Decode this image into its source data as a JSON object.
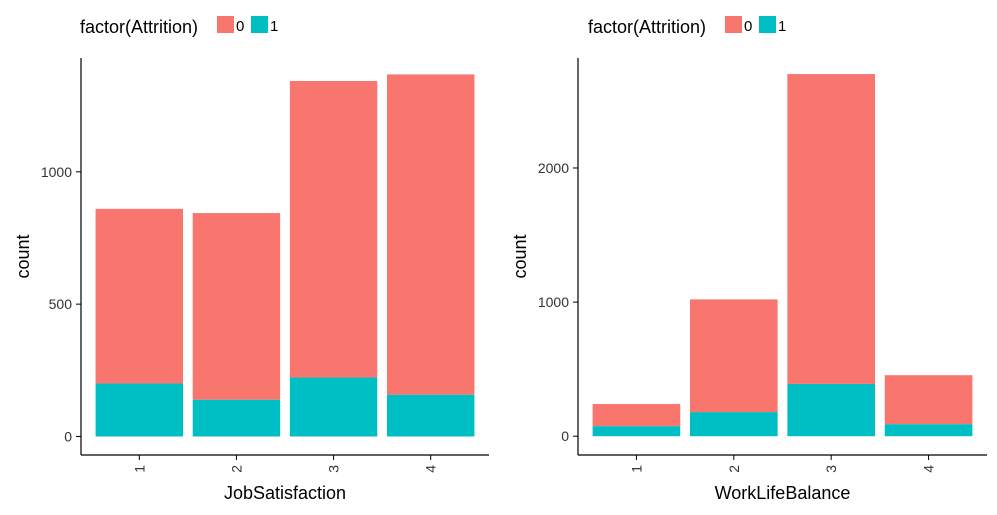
{
  "colors": {
    "series_0": "#F8766D",
    "series_1": "#00BFC4",
    "axis": "#000000"
  },
  "chart_data": [
    {
      "type": "bar",
      "stacked": true,
      "legend": {
        "title": "factor(Attrition)",
        "position": "top-left",
        "entries": [
          "0",
          "1"
        ]
      },
      "xlabel": "JobSatisfaction",
      "ylabel": "count",
      "categories": [
        "1",
        "2",
        "3",
        "4"
      ],
      "series": [
        {
          "name": "0",
          "values": [
            660,
            705,
            1120,
            1210
          ]
        },
        {
          "name": "1",
          "values": [
            200,
            139,
            223,
            158
          ]
        }
      ],
      "yticks": [
        0,
        500,
        1000
      ],
      "ytick_labels": [
        "0",
        "500",
        "1000"
      ],
      "ylim": [
        -70,
        1430
      ],
      "grid": false
    },
    {
      "type": "bar",
      "stacked": true,
      "legend": {
        "title": "factor(Attrition)",
        "position": "top-left",
        "entries": [
          "0",
          "1"
        ]
      },
      "xlabel": "WorkLifeBalance",
      "ylabel": "count",
      "categories": [
        "1",
        "2",
        "3",
        "4"
      ],
      "series": [
        {
          "name": "0",
          "values": [
            165,
            840,
            2310,
            365
          ]
        },
        {
          "name": "1",
          "values": [
            75,
            180,
            390,
            90
          ]
        }
      ],
      "yticks": [
        0,
        1000,
        2000
      ],
      "ytick_labels": [
        "0",
        "1000",
        "2000"
      ],
      "ylim": [
        -140,
        2820
      ],
      "grid": false
    }
  ]
}
